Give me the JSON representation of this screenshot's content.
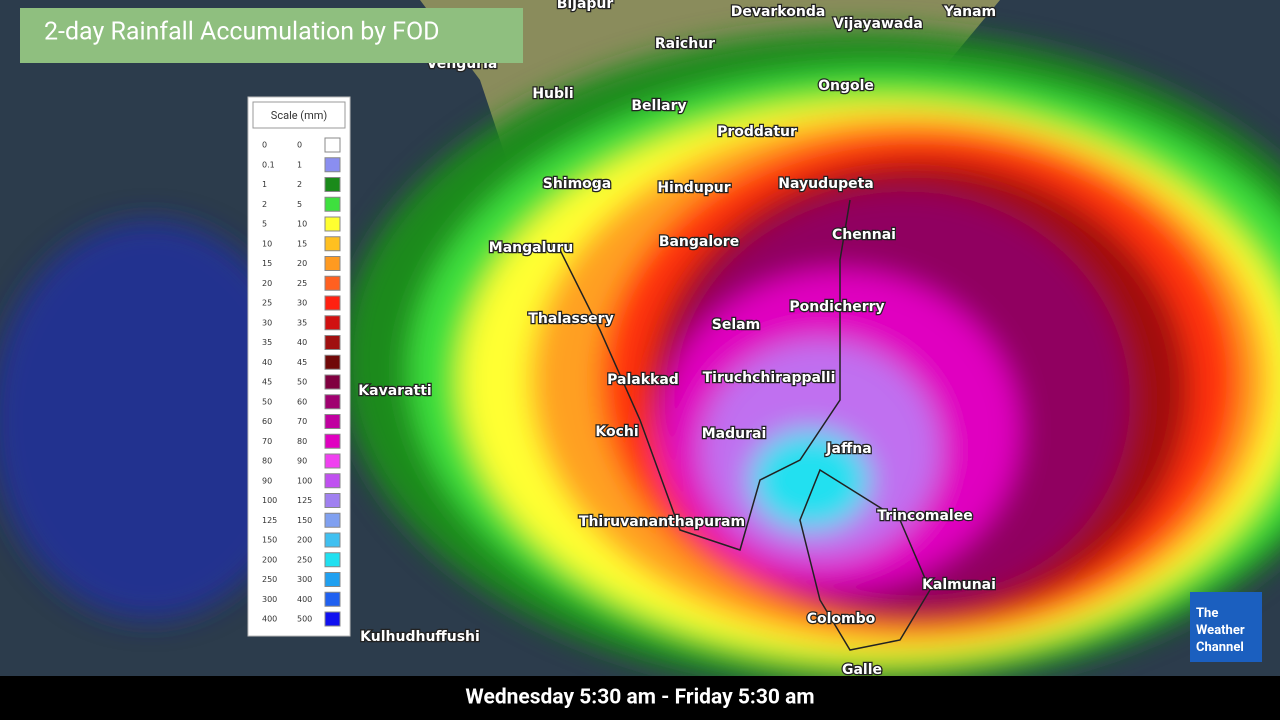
{
  "header": {
    "title": "2-day Rainfall Accumulation by FOD"
  },
  "footer": {
    "time_range": "Wednesday 5:30 am - Friday 5:30 am"
  },
  "logo": {
    "lines": [
      "The",
      "Weather",
      "Channel"
    ]
  },
  "cities": [
    "Bijapur",
    "Devarkonda",
    "Vijayawada",
    "Yanam",
    "Raichur",
    "Vengurla",
    "Hubli",
    "Bellary",
    "Ongole",
    "Proddatur",
    "Shimoga",
    "Hindupur",
    "Nayudupeta",
    "Mangaluru",
    "Bangalore",
    "Chennai",
    "Thalassery",
    "Selam",
    "Pondicherry",
    "Kavaratti",
    "Palakkad",
    "Tiruchchirappalli",
    "Kochi",
    "Madurai",
    "Jaffna",
    "Thiruvananthapuram",
    "Trincomalee",
    "Kalmunai",
    "Colombo",
    "Kulhudhuffushi",
    "Galle"
  ],
  "legend": {
    "title": "Scale (mm)",
    "rows": [
      {
        "from": 0,
        "to": 0,
        "color": "#ffffff"
      },
      {
        "from": 0.1,
        "to": 1,
        "color": "#8a8ef0"
      },
      {
        "from": 1,
        "to": 2,
        "color": "#1a8a1a"
      },
      {
        "from": 2,
        "to": 5,
        "color": "#3ee03e"
      },
      {
        "from": 5,
        "to": 10,
        "color": "#ffff30"
      },
      {
        "from": 10,
        "to": 15,
        "color": "#ffc020"
      },
      {
        "from": 15,
        "to": 20,
        "color": "#ff9a20"
      },
      {
        "from": 20,
        "to": 25,
        "color": "#ff6020"
      },
      {
        "from": 25,
        "to": 30,
        "color": "#ff2010"
      },
      {
        "from": 30,
        "to": 35,
        "color": "#d01010"
      },
      {
        "from": 35,
        "to": 40,
        "color": "#a01010"
      },
      {
        "from": 40,
        "to": 45,
        "color": "#700808"
      },
      {
        "from": 45,
        "to": 50,
        "color": "#800040"
      },
      {
        "from": 50,
        "to": 60,
        "color": "#a00070"
      },
      {
        "from": 60,
        "to": 70,
        "color": "#c000a0"
      },
      {
        "from": 70,
        "to": 80,
        "color": "#e000c0"
      },
      {
        "from": 80,
        "to": 90,
        "color": "#f040f0"
      },
      {
        "from": 90,
        "to": 100,
        "color": "#c050f0"
      },
      {
        "from": 100,
        "to": 125,
        "color": "#a080f0"
      },
      {
        "from": 125,
        "to": 150,
        "color": "#80a0f0"
      },
      {
        "from": 150,
        "to": 200,
        "color": "#40c0f0"
      },
      {
        "from": 200,
        "to": 250,
        "color": "#20e0f0"
      },
      {
        "from": 250,
        "to": 300,
        "color": "#20a0f0"
      },
      {
        "from": 300,
        "to": 400,
        "color": "#2060f0"
      },
      {
        "from": 400,
        "to": 500,
        "color": "#1010f0"
      }
    ]
  }
}
